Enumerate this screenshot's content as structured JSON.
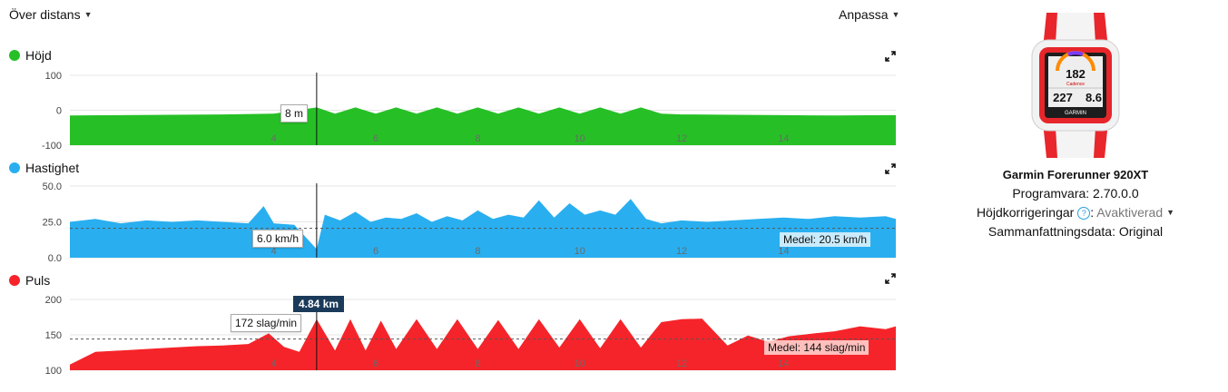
{
  "toolbar": {
    "x_axis_select": "Över distans",
    "customize": "Anpassa"
  },
  "colors": {
    "elevation": "#26c026",
    "speed": "#29aff0",
    "heart_rate": "#f5242a",
    "cursor_label_bg": "#1b3a5a"
  },
  "cursor": {
    "distance_km": 4.84,
    "label": "4.84 km"
  },
  "charts": {
    "elevation": {
      "title": "Höjd",
      "tooltip": "8 m",
      "average_label": ""
    },
    "speed": {
      "title": "Hastighet",
      "tooltip": "6.0 km/h",
      "average_label": "Medel: 20.5 km/h"
    },
    "heart_rate": {
      "title": "Puls",
      "tooltip": "172 slag/min",
      "average_label": "Medel: 144 slag/min"
    }
  },
  "chart_data": [
    {
      "type": "area",
      "title": "Höjd",
      "xlim": [
        0,
        16.2
      ],
      "ylim": [
        -100,
        100
      ],
      "yticks": [
        "100",
        "0",
        "-100"
      ],
      "xticks": [
        "4",
        "6",
        "8",
        "10",
        "12",
        "14"
      ],
      "x": [
        0,
        1,
        2,
        3,
        4,
        4.84,
        5.2,
        5.6,
        6.0,
        6.4,
        6.8,
        7.2,
        7.6,
        8.0,
        8.4,
        8.8,
        9.2,
        9.6,
        10.0,
        10.4,
        10.8,
        11.2,
        11.6,
        12,
        13,
        14,
        15,
        16,
        16.2
      ],
      "values": [
        -15,
        -14,
        -13,
        -12,
        -10,
        8,
        -10,
        8,
        -10,
        8,
        -10,
        8,
        -10,
        8,
        -10,
        8,
        -10,
        8,
        -10,
        8,
        -10,
        8,
        -10,
        -12,
        -13,
        -14,
        -15,
        -14,
        -14
      ]
    },
    {
      "type": "area",
      "title": "Hastighet",
      "xlim": [
        0,
        16.2
      ],
      "ylim": [
        0,
        50
      ],
      "yticks": [
        "50.0",
        "25.0",
        "0.0"
      ],
      "xticks": [
        "4",
        "6",
        "8",
        "10",
        "12",
        "14"
      ],
      "average": 20.5,
      "x": [
        0,
        0.5,
        1,
        1.5,
        2,
        2.5,
        3,
        3.5,
        3.8,
        4.0,
        4.4,
        4.84,
        5.0,
        5.3,
        5.6,
        5.9,
        6.2,
        6.5,
        6.8,
        7.1,
        7.4,
        7.7,
        8.0,
        8.3,
        8.6,
        8.9,
        9.2,
        9.5,
        9.8,
        10.1,
        10.4,
        10.7,
        11.0,
        11.3,
        11.6,
        12,
        12.5,
        13,
        13.5,
        14,
        14.5,
        15,
        15.5,
        16,
        16.2
      ],
      "values": [
        25,
        27,
        24,
        26,
        25,
        26,
        25,
        24,
        36,
        24,
        23,
        6,
        30,
        26,
        32,
        25,
        28,
        27,
        31,
        25,
        29,
        26,
        33,
        27,
        30,
        28,
        40,
        28,
        38,
        30,
        33,
        30,
        41,
        27,
        24,
        26,
        25,
        26,
        27,
        28,
        27,
        29,
        28,
        29,
        27
      ]
    },
    {
      "type": "area",
      "title": "Puls",
      "xlim": [
        0,
        16.2
      ],
      "ylim": [
        100,
        200
      ],
      "yticks": [
        "200",
        "150",
        "100"
      ],
      "xticks": [
        "4",
        "6",
        "8",
        "10",
        "12",
        "14"
      ],
      "average": 144,
      "x": [
        0,
        0.5,
        1,
        1.5,
        2,
        2.5,
        3,
        3.5,
        3.9,
        4.2,
        4.5,
        4.84,
        5.2,
        5.5,
        5.8,
        6.1,
        6.4,
        6.8,
        7.2,
        7.6,
        8.0,
        8.4,
        8.8,
        9.2,
        9.6,
        10.0,
        10.4,
        10.8,
        11.2,
        11.6,
        12,
        12.4,
        12.9,
        13.3,
        13.7,
        14.1,
        14.6,
        15,
        15.5,
        16,
        16.2
      ],
      "values": [
        108,
        126,
        128,
        130,
        132,
        134,
        135,
        137,
        152,
        133,
        126,
        172,
        128,
        172,
        128,
        170,
        130,
        172,
        130,
        172,
        130,
        171,
        130,
        172,
        132,
        172,
        131,
        172,
        132,
        168,
        172,
        173,
        135,
        149,
        140,
        148,
        152,
        155,
        162,
        158,
        162
      ]
    }
  ],
  "device": {
    "screen_values": [
      "182",
      "Cadence",
      "227",
      "8.6"
    ],
    "brand": "GARMIN",
    "name": "Garmin Forerunner 920XT",
    "software": "Programvara: 2.70.0.0",
    "elevation_corrections_label": "Höjdkorrigeringar",
    "elevation_corrections_value": "Avaktiverad",
    "summary_data": "Sammanfattningsdata: Original"
  }
}
